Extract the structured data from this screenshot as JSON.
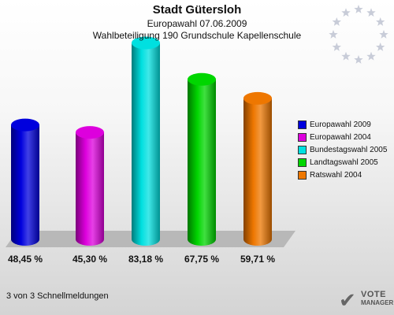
{
  "chart_data": {
    "type": "bar",
    "title": "Stadt Gütersloh",
    "subtitle": "Europawahl 07.06.2009",
    "subtitle2": "Wahlbeteiligung 190 Grundschule Kapellenschule",
    "categories": [
      "Europawahl 2009",
      "Europawahl 2004",
      "Bundestagswahl 2005",
      "Landtagswahl 2005",
      "Ratswahl 2004"
    ],
    "values": [
      48.45,
      45.3,
      83.18,
      67.75,
      59.71
    ],
    "value_labels": [
      "48,45 %",
      "45,30 %",
      "83,18 %",
      "67,75 %",
      "59,71 %"
    ],
    "colors": [
      "#0000dd",
      "#dd00dd",
      "#00e0e0",
      "#00d600",
      "#ee7700"
    ],
    "ylim": [
      0,
      100
    ],
    "legend_position": "right",
    "grid": false
  },
  "footnote": "3 von 3 Schnellmeldungen",
  "logo": {
    "line1": "VOTE",
    "line2": "MANAGER",
    "mark": "✔"
  },
  "decoration": {
    "eu_stars_icon": "eu-stars-icon"
  }
}
